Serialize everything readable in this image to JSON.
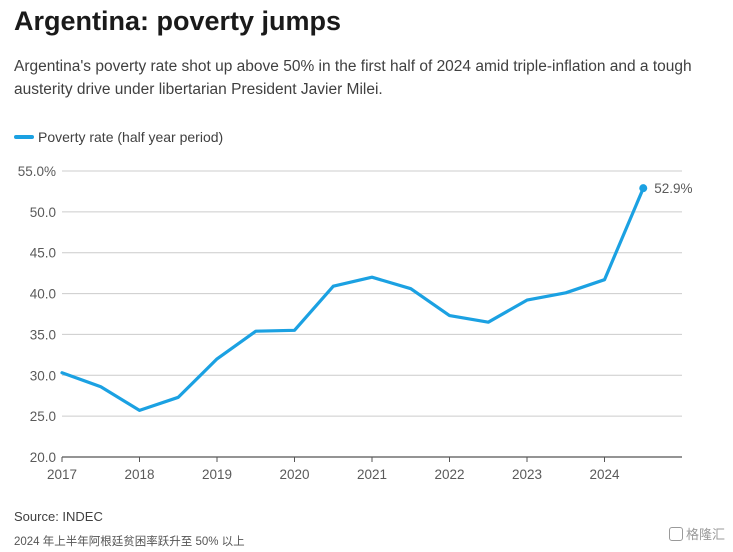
{
  "header": {
    "title": "Argentina: poverty jumps",
    "subtitle": "Argentina's poverty rate shot up above 50% in the first half of 2024 amid triple-inflation and a tough austerity drive under libertarian President Javier Milei."
  },
  "footer": {
    "source": "Source: INDEC",
    "note": "2024 年上半年阿根廷贫困率跃升至 50% 以上",
    "watermark": "格隆汇"
  },
  "colors": {
    "series": "#1ba1e2",
    "grid": "#cccccc",
    "axis": "#555555"
  },
  "chart_data": {
    "type": "line",
    "title": "Argentina: poverty jumps",
    "xlabel": "",
    "ylabel": "",
    "xlim": [
      2017,
      2025
    ],
    "ylim": [
      20,
      55
    ],
    "grid": true,
    "legend_position": "top-left",
    "y_ticks": [
      {
        "value": 55,
        "label": "55.0%"
      },
      {
        "value": 50,
        "label": "50.0"
      },
      {
        "value": 45,
        "label": "45.0"
      },
      {
        "value": 40,
        "label": "40.0"
      },
      {
        "value": 35,
        "label": "35.0"
      },
      {
        "value": 30,
        "label": "30.0"
      },
      {
        "value": 25,
        "label": "25.0"
      },
      {
        "value": 20,
        "label": "20.0"
      }
    ],
    "x_ticks": [
      {
        "value": 2017,
        "label": "2017"
      },
      {
        "value": 2018,
        "label": "2018"
      },
      {
        "value": 2019,
        "label": "2019"
      },
      {
        "value": 2020,
        "label": "2020"
      },
      {
        "value": 2021,
        "label": "2021"
      },
      {
        "value": 2022,
        "label": "2022"
      },
      {
        "value": 2023,
        "label": "2023"
      },
      {
        "value": 2024,
        "label": "2024"
      }
    ],
    "series": [
      {
        "name": "Poverty rate (half year period)",
        "x": [
          2017.0,
          2017.5,
          2018.0,
          2018.5,
          2019.0,
          2019.5,
          2020.0,
          2020.5,
          2021.0,
          2021.5,
          2022.0,
          2022.5,
          2023.0,
          2023.5,
          2024.0,
          2024.5
        ],
        "values": [
          30.3,
          28.6,
          25.7,
          27.3,
          32.0,
          35.4,
          35.5,
          40.9,
          42.0,
          40.6,
          37.3,
          36.5,
          39.2,
          40.1,
          41.7,
          52.9
        ]
      }
    ],
    "annotations": [
      {
        "x": 2024.5,
        "y": 52.9,
        "text": "52.9%"
      }
    ]
  }
}
